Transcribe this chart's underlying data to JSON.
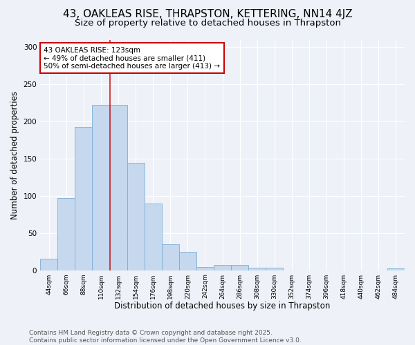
{
  "title": "43, OAKLEAS RISE, THRAPSTON, KETTERING, NN14 4JZ",
  "subtitle": "Size of property relative to detached houses in Thrapston",
  "xlabel": "Distribution of detached houses by size in Thrapston",
  "ylabel": "Number of detached properties",
  "categories": [
    "44sqm",
    "66sqm",
    "88sqm",
    "110sqm",
    "132sqm",
    "154sqm",
    "176sqm",
    "198sqm",
    "220sqm",
    "242sqm",
    "264sqm",
    "286sqm",
    "308sqm",
    "330sqm",
    "352sqm",
    "374sqm",
    "396sqm",
    "418sqm",
    "440sqm",
    "462sqm",
    "484sqm"
  ],
  "values": [
    15,
    97,
    193,
    222,
    222,
    144,
    90,
    35,
    25,
    4,
    7,
    7,
    3,
    3,
    0,
    0,
    0,
    0,
    0,
    0,
    2
  ],
  "bar_color": "#c5d8ee",
  "bar_edge_color": "#7aafd4",
  "vline_x": 3.5,
  "vline_color": "#cc2222",
  "annotation_title": "43 OAKLEAS RISE: 123sqm",
  "annotation_line1": "← 49% of detached houses are smaller (411)",
  "annotation_line2": "50% of semi-detached houses are larger (413) →",
  "annotation_box_facecolor": "#ffffff",
  "annotation_box_edgecolor": "#cc0000",
  "footer_line1": "Contains HM Land Registry data © Crown copyright and database right 2025.",
  "footer_line2": "Contains public sector information licensed under the Open Government Licence v3.0.",
  "ylim_max": 310,
  "background_color": "#eef2f8",
  "grid_color": "#ffffff",
  "title_fontsize": 11,
  "subtitle_fontsize": 9.5,
  "tick_fontsize": 6.5,
  "ylabel_fontsize": 8.5,
  "xlabel_fontsize": 8.5,
  "annotation_fontsize": 7.5,
  "footer_fontsize": 6.5
}
